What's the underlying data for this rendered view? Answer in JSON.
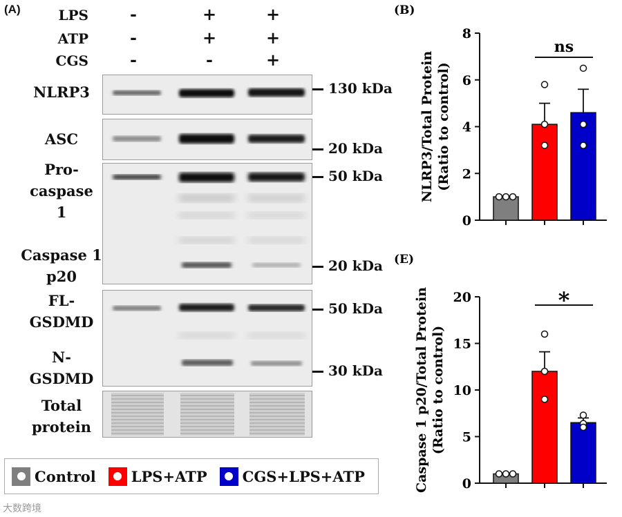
{
  "panel_a": {
    "label": "(A)",
    "conditions": [
      {
        "name": "LPS",
        "signs": [
          "-",
          "+",
          "+"
        ]
      },
      {
        "name": "ATP",
        "signs": [
          "-",
          "+",
          "+"
        ]
      },
      {
        "name": "CGS",
        "signs": [
          "-",
          "-",
          "+"
        ]
      }
    ],
    "rows": {
      "nlrp3": "NLRP3",
      "asc": "ASC",
      "pro_caspase_1": "Pro-\ncaspase 1",
      "caspase_p20": "Caspase 1\np20",
      "fl_gsdmd": "FL-\nGSDMD",
      "n_gsdmd": "N-\nGSDMD",
      "total_protein": "Total\nprotein"
    },
    "markers": {
      "m130": "130 kDa",
      "m20a": "20 kDa",
      "m50a": "50 kDa",
      "m20b": "20 kDa",
      "m50b": "50 kDa",
      "m30": "30 kDa"
    }
  },
  "legend": {
    "items": [
      {
        "label": "Control",
        "color": "#7f7f7f"
      },
      {
        "label": "LPS+ATP",
        "color": "#ff0000"
      },
      {
        "label": "CGS+LPS+ATP",
        "color": "#0000c8"
      }
    ]
  },
  "colors": {
    "control": "#7f7f7f",
    "lps_atp": "#ff0000",
    "cgs_lps_atp": "#0000c8"
  },
  "chart_data": [
    {
      "panel": "(B)",
      "type": "bar",
      "ylabel": "NLRP3/Total Protein\n(Ratio to control)",
      "yticks": [
        0,
        2,
        4,
        6,
        8
      ],
      "ylim": [
        0,
        8
      ],
      "categories": [
        "Control",
        "LPS+ATP",
        "CGS+LPS+ATP"
      ],
      "values": [
        1.0,
        4.1,
        4.6
      ],
      "errors": [
        0.0,
        0.9,
        1.0
      ],
      "points": [
        [
          1.0,
          1.0,
          1.0
        ],
        [
          5.8,
          4.1,
          3.2
        ],
        [
          6.5,
          4.1,
          3.2
        ]
      ],
      "significance": {
        "label": "ns",
        "from": 1,
        "to": 2
      }
    },
    {
      "panel": "(E)",
      "type": "bar",
      "ylabel": "Caspase 1 p20/Total Protein\n(Ratio to control)",
      "yticks": [
        0,
        5,
        10,
        15,
        20
      ],
      "ylim": [
        0,
        20
      ],
      "categories": [
        "Control",
        "LPS+ATP",
        "CGS+LPS+ATP"
      ],
      "values": [
        1.0,
        12.0,
        6.5
      ],
      "errors": [
        0.0,
        2.1,
        0.5
      ],
      "points": [
        [
          1.0,
          1.0,
          1.0
        ],
        [
          16.0,
          12.0,
          9.0
        ],
        [
          7.3,
          6.4,
          6.0
        ]
      ],
      "significance": {
        "label": "*",
        "from": 1,
        "to": 2
      }
    }
  ],
  "watermark": "大数跨境"
}
